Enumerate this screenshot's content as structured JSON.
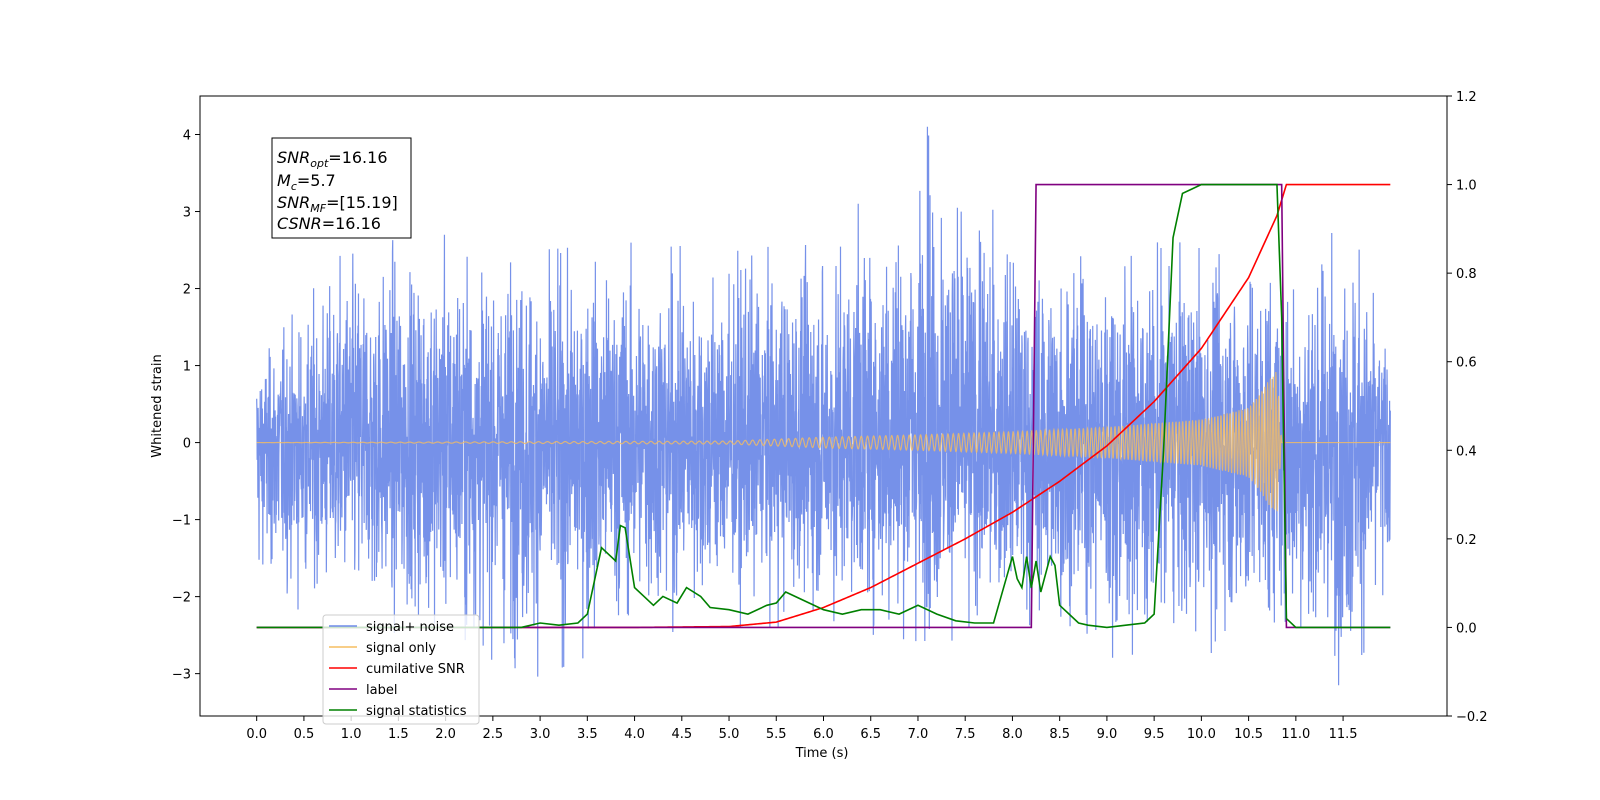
{
  "chart_data": {
    "type": "line",
    "xlabel": "Time (s)",
    "ylabel": "Whitened strain",
    "xlim": [
      -0.6,
      12.6
    ],
    "ylim_left": [
      -3.55,
      4.5
    ],
    "ylim_right": [
      -0.2,
      1.2
    ],
    "x_ticks": [
      "0.0",
      "0.5",
      "1.0",
      "1.5",
      "2.0",
      "2.5",
      "3.0",
      "3.5",
      "4.0",
      "4.5",
      "5.0",
      "5.5",
      "6.0",
      "6.5",
      "7.0",
      "7.5",
      "8.0",
      "8.5",
      "9.0",
      "9.5",
      "10.0",
      "10.5",
      "11.0",
      "11.5"
    ],
    "y_left_ticks": [
      "−3",
      "−2",
      "−1",
      "0",
      "1",
      "2",
      "3",
      "4"
    ],
    "y_right_ticks": [
      "−0.2",
      "0.0",
      "0.2",
      "0.4",
      "0.6",
      "0.8",
      "1.0",
      "1.2"
    ],
    "annotation": {
      "snr_opt": {
        "sym": "SNR",
        "sub": "opt",
        "value": "=16.16"
      },
      "mc": {
        "sym": "M",
        "sub": "c",
        "value": "=5.7"
      },
      "snr_mf": {
        "sym": "SNR",
        "sub": "MF",
        "value": "=[15.19]"
      },
      "csnr": {
        "sym": "CSNR",
        "sub": "",
        "value": "=16.16"
      }
    },
    "legend": {
      "placement": "lower-left",
      "entries": [
        {
          "label": "signal+ noise",
          "color": "#6f8be8"
        },
        {
          "label": "signal only",
          "color": "#f6bd60"
        },
        {
          "label": "cumilative SNR",
          "color": "#ff0000"
        },
        {
          "label": "label",
          "color": "#800080"
        },
        {
          "label": "signal statistics",
          "color": "#008000"
        }
      ]
    },
    "series": [
      {
        "name": "signal+ noise",
        "axis": "left",
        "color": "#6f8be8",
        "description_of_values": "whitened strain noise, roughly Gaussian, amplitude ~ ±2.5 with spikes up to 4.1 at t≈7.1 s",
        "x_range": [
          0.0,
          12.0
        ],
        "envelope_points": [
          [
            0.0,
            1.1,
            -2.0
          ],
          [
            1.0,
            2.6,
            -2.4
          ],
          [
            2.0,
            2.7,
            -2.6
          ],
          [
            3.0,
            2.5,
            -3.05
          ],
          [
            4.0,
            2.6,
            -2.5
          ],
          [
            5.0,
            2.5,
            -2.4
          ],
          [
            6.0,
            2.6,
            -2.4
          ],
          [
            7.1,
            4.1,
            -2.6
          ],
          [
            8.0,
            2.7,
            -2.5
          ],
          [
            9.0,
            2.6,
            -2.8
          ],
          [
            10.0,
            2.6,
            -2.7
          ],
          [
            11.0,
            2.6,
            -3.0
          ],
          [
            11.6,
            2.8,
            -3.2
          ],
          [
            12.0,
            1.3,
            -2.3
          ]
        ]
      },
      {
        "name": "signal only",
        "axis": "left",
        "color": "#f6bd60",
        "description_of_values": "chirp waveform growing in amplitude until merger",
        "amplitude_envelope": [
          [
            0.0,
            0.0
          ],
          [
            5.0,
            0.02
          ],
          [
            6.0,
            0.07
          ],
          [
            7.0,
            0.1
          ],
          [
            8.0,
            0.14
          ],
          [
            9.0,
            0.2
          ],
          [
            10.0,
            0.3
          ],
          [
            10.5,
            0.45
          ],
          [
            10.8,
            0.95
          ],
          [
            10.85,
            0.0
          ],
          [
            12.0,
            0.0
          ]
        ]
      },
      {
        "name": "cumilative SNR",
        "axis": "right",
        "color": "#ff0000",
        "x": [
          0.0,
          4.0,
          5.0,
          5.5,
          6.0,
          6.5,
          7.0,
          7.5,
          8.0,
          8.5,
          9.0,
          9.5,
          10.0,
          10.5,
          10.8,
          10.9,
          12.0
        ],
        "y": [
          0.0,
          0.0,
          0.002,
          0.012,
          0.045,
          0.09,
          0.145,
          0.2,
          0.26,
          0.33,
          0.41,
          0.51,
          0.63,
          0.79,
          0.93,
          1.0,
          1.0
        ]
      },
      {
        "name": "label",
        "axis": "right",
        "color": "#800080",
        "x": [
          0.0,
          8.2,
          8.25,
          10.85,
          10.9,
          12.0
        ],
        "y": [
          0.0,
          0.0,
          1.0,
          1.0,
          0.0,
          0.0
        ]
      },
      {
        "name": "signal statistics",
        "axis": "right",
        "color": "#008000",
        "x": [
          0.0,
          2.8,
          3.0,
          3.2,
          3.4,
          3.5,
          3.65,
          3.8,
          3.85,
          3.9,
          4.0,
          4.1,
          4.2,
          4.3,
          4.45,
          4.55,
          4.7,
          4.8,
          5.0,
          5.2,
          5.4,
          5.5,
          5.6,
          5.8,
          6.0,
          6.2,
          6.4,
          6.6,
          6.8,
          7.0,
          7.2,
          7.4,
          7.6,
          7.8,
          8.0,
          8.05,
          8.1,
          8.15,
          8.2,
          8.25,
          8.3,
          8.4,
          8.45,
          8.5,
          8.6,
          8.7,
          8.8,
          9.0,
          9.2,
          9.4,
          9.5,
          9.6,
          9.7,
          9.8,
          9.9,
          10.0,
          10.2,
          10.5,
          10.8,
          10.85,
          10.9,
          11.0,
          12.0
        ],
        "y": [
          0.0,
          0.0,
          0.01,
          0.005,
          0.01,
          0.03,
          0.18,
          0.15,
          0.23,
          0.225,
          0.09,
          0.07,
          0.05,
          0.07,
          0.055,
          0.09,
          0.07,
          0.045,
          0.04,
          0.03,
          0.05,
          0.055,
          0.08,
          0.06,
          0.04,
          0.03,
          0.04,
          0.04,
          0.03,
          0.05,
          0.03,
          0.015,
          0.01,
          0.01,
          0.16,
          0.11,
          0.09,
          0.16,
          0.09,
          0.15,
          0.08,
          0.16,
          0.14,
          0.05,
          0.03,
          0.01,
          0.005,
          0.0,
          0.005,
          0.01,
          0.03,
          0.4,
          0.88,
          0.98,
          0.99,
          1.0,
          1.0,
          1.0,
          1.0,
          0.7,
          0.02,
          0.0,
          0.0
        ]
      }
    ]
  }
}
